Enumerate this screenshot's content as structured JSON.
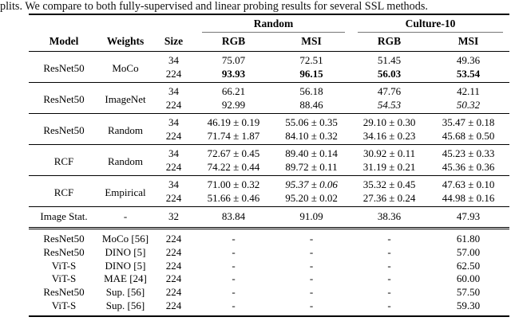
{
  "caption": "plits. We compare to both fully-supervised and linear probing results for several SSL methods.",
  "table": {
    "span_headers": [
      "Random",
      "Culture-10"
    ],
    "columns": [
      "Model",
      "Weights",
      "Size",
      "RGB",
      "MSI",
      "RGB",
      "MSI"
    ],
    "groups": [
      {
        "model": "ResNet50",
        "weights": "MoCo",
        "rows": [
          {
            "size": "34",
            "values": [
              "75.07",
              "72.51",
              "51.45",
              "49.36"
            ]
          },
          {
            "size": "224",
            "values": [
              "93.93",
              "96.15",
              "56.03",
              "53.54"
            ]
          }
        ]
      },
      {
        "model": "ResNet50",
        "weights": "ImageNet",
        "rows": [
          {
            "size": "34",
            "values": [
              "66.21",
              "56.18",
              "47.76",
              "42.11"
            ]
          },
          {
            "size": "224",
            "values": [
              "92.99",
              "88.46",
              "54.53",
              "50.32"
            ]
          }
        ]
      },
      {
        "model": "ResNet50",
        "weights": "Random",
        "rows": [
          {
            "size": "34",
            "values": [
              "46.19 ± 0.19",
              "55.06 ± 0.35",
              "29.10 ± 0.30",
              "35.47 ± 0.18"
            ]
          },
          {
            "size": "224",
            "values": [
              "71.74 ± 1.87",
              "84.10 ± 0.32",
              "34.16 ± 0.23",
              "45.68 ± 0.50"
            ]
          }
        ]
      },
      {
        "model": "RCF",
        "weights": "Random",
        "rows": [
          {
            "size": "34",
            "values": [
              "72.67 ± 0.45",
              "89.40 ± 0.14",
              "30.92 ± 0.11",
              "45.23 ± 0.33"
            ]
          },
          {
            "size": "224",
            "values": [
              "74.22 ± 0.44",
              "89.72 ± 0.11",
              "31.19 ± 0.21",
              "45.36 ± 0.36"
            ]
          }
        ]
      },
      {
        "model": "RCF",
        "weights": "Empirical",
        "rows": [
          {
            "size": "34",
            "values": [
              "71.00 ± 0.32",
              "95.37 ± 0.06",
              "35.32 ± 0.45",
              "47.63 ± 0.10"
            ]
          },
          {
            "size": "224",
            "values": [
              "51.66 ± 0.46",
              "95.20 ± 0.02",
              "27.36 ± 0.24",
              "44.98 ± 0.16"
            ]
          }
        ]
      }
    ],
    "image_stat_row": {
      "model": "Image Stat.",
      "weights": "-",
      "size": "32",
      "values": [
        "83.84",
        "91.09",
        "38.36",
        "47.93"
      ]
    },
    "ssl_rows": [
      {
        "model": "ResNet50",
        "weights": "MoCo [56]",
        "size": "224",
        "values": [
          "-",
          "-",
          "-",
          "61.80"
        ]
      },
      {
        "model": "ResNet50",
        "weights": "DINO [5]",
        "size": "224",
        "values": [
          "-",
          "-",
          "-",
          "57.00"
        ]
      },
      {
        "model": "ViT-S",
        "weights": "DINO [5]",
        "size": "224",
        "values": [
          "-",
          "-",
          "-",
          "62.50"
        ]
      },
      {
        "model": "ViT-S",
        "weights": "MAE [24]",
        "size": "224",
        "values": [
          "-",
          "-",
          "-",
          "60.00"
        ]
      },
      {
        "model": "ResNet50",
        "weights": "Sup. [56]",
        "size": "224",
        "values": [
          "-",
          "-",
          "-",
          "57.50"
        ]
      },
      {
        "model": "ViT-S",
        "weights": "Sup. [56]",
        "size": "224",
        "values": [
          "-",
          "-",
          "-",
          "59.30"
        ]
      }
    ]
  }
}
